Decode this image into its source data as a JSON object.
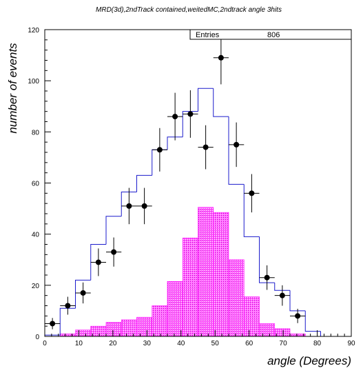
{
  "chart_data": {
    "type": "histogram",
    "title": "MRD(3d),2ndTrack contained,weitedMC,2ndtrack angle 3hits",
    "xlabel": "angle (Degrees)",
    "ylabel": "number of events",
    "xlim": [
      0,
      90
    ],
    "ylim": [
      0,
      120
    ],
    "x_ticks": [
      0,
      10,
      20,
      30,
      40,
      50,
      60,
      70,
      80,
      90
    ],
    "y_ticks": [
      0,
      20,
      40,
      60,
      80,
      100,
      120
    ],
    "stats": {
      "label": "Entries",
      "value": "806"
    },
    "bin_edges": [
      0,
      4.5,
      9,
      13.5,
      18,
      22.5,
      27,
      31.5,
      36,
      40.5,
      45,
      49.5,
      54,
      58.5,
      63,
      67.5,
      72,
      76.5,
      81,
      85.5,
      90
    ],
    "series": [
      {
        "kind": "mc_line",
        "color": "#1a1acc",
        "values": [
          0.5,
          11,
          22,
          36,
          47,
          56.5,
          63,
          73,
          78,
          88,
          97,
          86,
          59.5,
          39,
          21,
          18,
          10,
          2,
          0,
          0
        ]
      },
      {
        "kind": "mc_fill",
        "color": "#ff00ff",
        "values": [
          0,
          1,
          2.5,
          4,
          5.5,
          6.5,
          7.5,
          12,
          21.5,
          38.5,
          50.5,
          48.5,
          30,
          15.5,
          5,
          3,
          1,
          0,
          0,
          0
        ]
      },
      {
        "kind": "data_points",
        "color": "#000000",
        "x": [
          2.25,
          6.75,
          11.25,
          15.75,
          20.25,
          24.75,
          29.25,
          33.75,
          38.25,
          42.75,
          47.25,
          51.75,
          56.25,
          60.75,
          65.25,
          69.75,
          74.25
        ],
        "y": [
          5,
          12,
          17,
          29,
          33,
          51,
          51,
          73,
          86,
          87,
          74,
          109,
          75,
          56,
          23,
          16,
          8
        ],
        "yerr": [
          2.2,
          3.5,
          4.1,
          5.4,
          5.7,
          7.1,
          7.1,
          8.5,
          9.3,
          9.3,
          8.6,
          10.4,
          8.7,
          7.5,
          4.8,
          4.0,
          2.8
        ]
      }
    ]
  }
}
